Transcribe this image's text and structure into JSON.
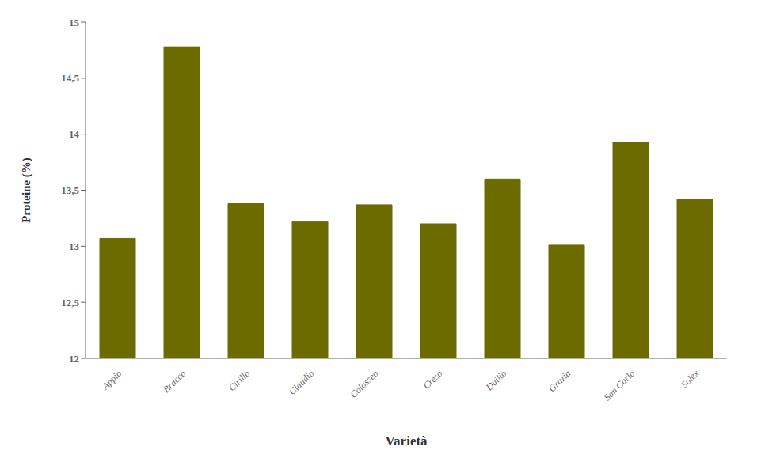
{
  "chart_data": {
    "type": "bar",
    "categories": [
      "Appio",
      "Bracco",
      "Cirillo",
      "Claudio",
      "Colosseo",
      "Creso",
      "Duilio",
      "Grazia",
      "San Carlo",
      "Solex"
    ],
    "values": [
      13.07,
      14.78,
      13.38,
      13.22,
      13.37,
      13.2,
      13.6,
      13.01,
      13.93,
      13.42
    ],
    "color": "#6b6b00",
    "xlabel": "Varietà",
    "ylabel": "Proteine (%)",
    "ylim": [
      12.0,
      15.0
    ],
    "yticks": [
      12,
      {
        "value": 12.5,
        "label": "12,5"
      },
      13,
      {
        "value": 13.5,
        "label": "13,5"
      },
      14,
      {
        "value": 14.5,
        "label": "14,5"
      },
      15
    ],
    "grid": false
  }
}
